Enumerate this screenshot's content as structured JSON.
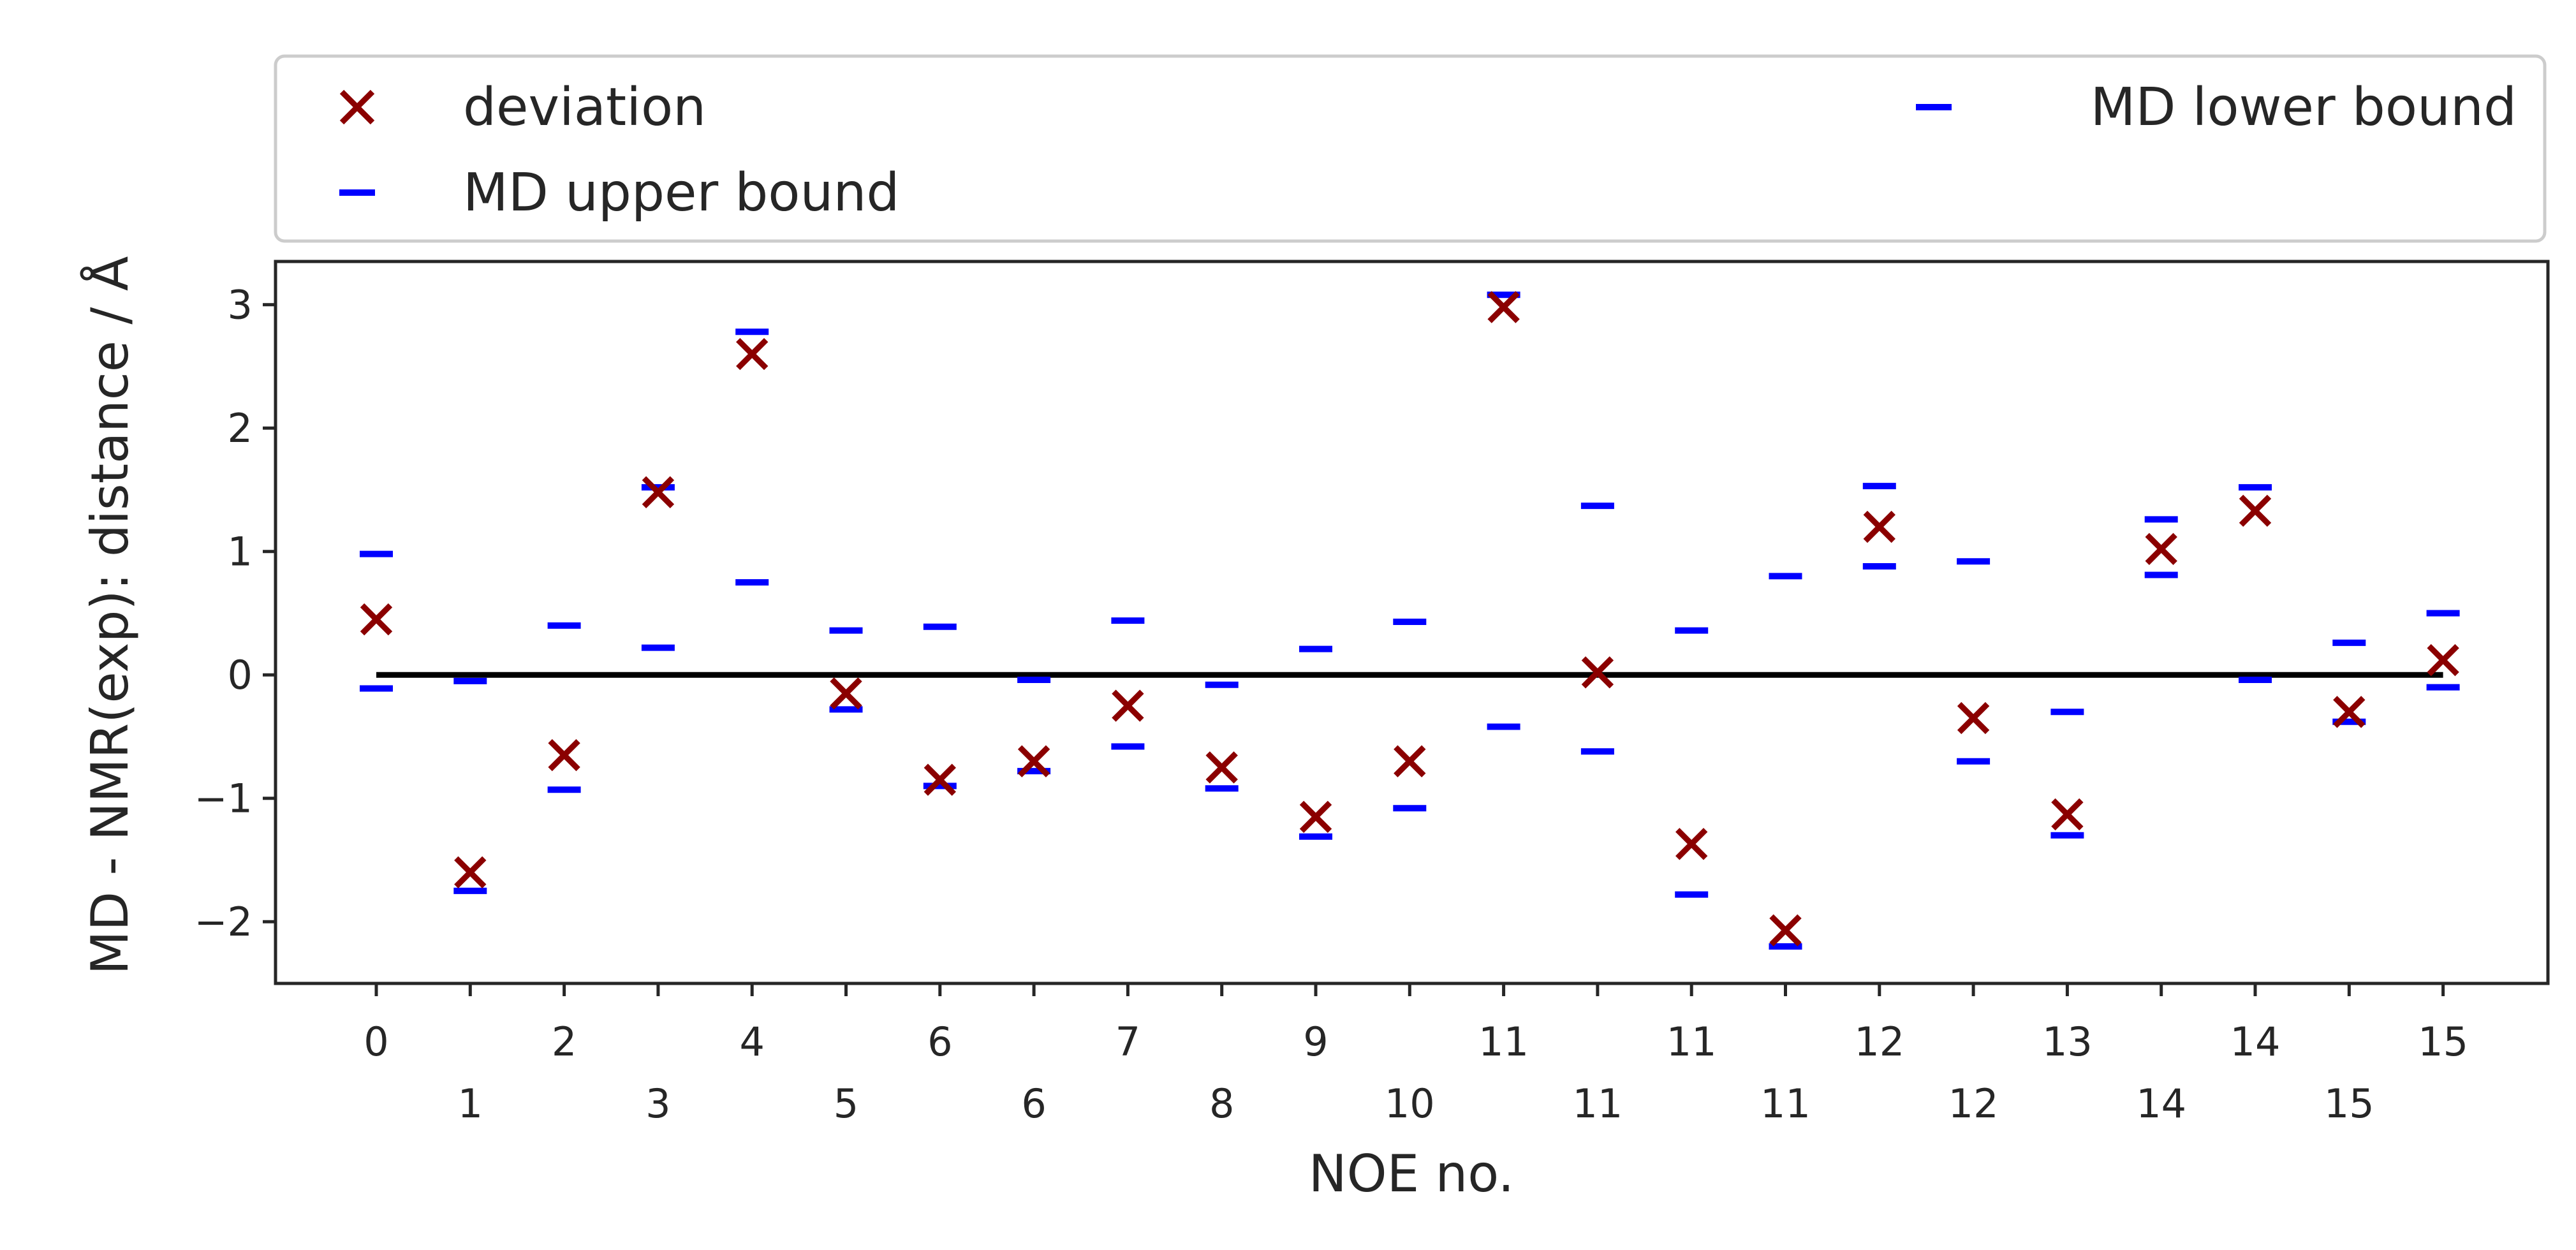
{
  "chart_data": {
    "type": "scatter",
    "xlabel": "NOE no.",
    "ylabel": "MD - NMR(exp): distance / Å",
    "ylim": [
      -2.5,
      3.35
    ],
    "yticks": [
      -2,
      -1,
      0,
      1,
      2,
      3
    ],
    "ytick_labels": [
      "−2",
      "−1",
      "0",
      "1",
      "2",
      "3"
    ],
    "x_count": 23,
    "xtick_labels": [
      "0",
      "1",
      "2",
      "3",
      "4",
      "5",
      "6",
      "6",
      "7",
      "8",
      "9",
      "10",
      "11",
      "11",
      "11",
      "11",
      "12",
      "12",
      "13",
      "14",
      "14",
      "15",
      "15"
    ],
    "grid": false,
    "legend_position": "top",
    "zero_line": true,
    "series": [
      {
        "name": "deviation",
        "marker": "x",
        "color": "#8b0000",
        "values": [
          0.45,
          -1.6,
          -0.65,
          1.48,
          2.6,
          -0.15,
          -0.85,
          -0.7,
          -0.25,
          -0.75,
          -1.15,
          -0.7,
          2.98,
          0.02,
          -1.37,
          -2.07,
          1.2,
          -0.35,
          -1.13,
          1.02,
          1.33,
          -0.3,
          0.12
        ]
      },
      {
        "name": "MD upper bound",
        "marker": "_",
        "color": "#0000ff",
        "values": [
          0.98,
          -0.05,
          0.4,
          1.52,
          2.78,
          0.36,
          0.39,
          -0.04,
          0.44,
          -0.08,
          0.21,
          0.43,
          3.08,
          1.37,
          0.36,
          0.8,
          1.53,
          0.92,
          -0.3,
          1.26,
          1.52,
          0.26,
          0.5
        ]
      },
      {
        "name": "MD lower bound",
        "marker": "_",
        "color": "#0000ff",
        "values": [
          -0.11,
          -1.75,
          -0.93,
          0.22,
          0.75,
          -0.28,
          -0.9,
          -0.78,
          -0.58,
          -0.92,
          -1.31,
          -1.08,
          -0.42,
          -0.62,
          -1.78,
          -2.2,
          0.88,
          -0.7,
          -1.3,
          0.81,
          -0.04,
          -0.38,
          -0.1
        ]
      }
    ]
  },
  "colors": {
    "deviation": "#8b0000",
    "bounds": "#0000ff",
    "zero_line": "#000000"
  }
}
